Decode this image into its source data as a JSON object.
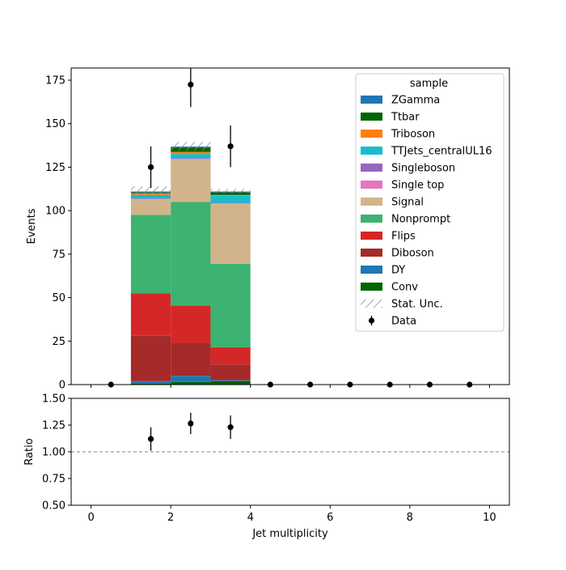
{
  "chart_data": [
    {
      "type": "bar",
      "stacked": true,
      "ylabel": "Events",
      "xlim": [
        -0.5,
        10.5
      ],
      "ylim": [
        0,
        182
      ],
      "yticks": [
        0,
        25,
        50,
        75,
        100,
        125,
        150,
        175
      ],
      "bins": [
        [
          1,
          2
        ],
        [
          2,
          3
        ],
        [
          3,
          4
        ]
      ],
      "series": [
        {
          "name": "Conv",
          "color": "#006400",
          "values": [
            0.5,
            1.5,
            2.0
          ]
        },
        {
          "name": "DY",
          "color": "#1f77b4",
          "values": [
            1.5,
            3.5,
            0.5
          ]
        },
        {
          "name": "Diboson",
          "color": "#a52a2a",
          "values": [
            26.0,
            19.0,
            9.0
          ]
        },
        {
          "name": "Flips",
          "color": "#d62728",
          "values": [
            24.5,
            21.5,
            10.0
          ]
        },
        {
          "name": "Nonprompt",
          "color": "#3cb371",
          "values": [
            45.0,
            59.5,
            48.0
          ]
        },
        {
          "name": "Signal",
          "color": "#d2b48c",
          "values": [
            9.0,
            24.5,
            34.5
          ]
        },
        {
          "name": "Single top",
          "color": "#e377c2",
          "values": [
            0.3,
            0.4,
            0.3
          ]
        },
        {
          "name": "Singleboson",
          "color": "#9467bd",
          "values": [
            0.2,
            0.2,
            0.2
          ]
        },
        {
          "name": "TTJets_centralUL16",
          "color": "#17becf",
          "values": [
            2.0,
            2.5,
            4.0
          ]
        },
        {
          "name": "Triboson",
          "color": "#ff7f0e",
          "values": [
            1.0,
            1.2,
            0.5
          ]
        },
        {
          "name": "Ttbar",
          "color": "#006400",
          "values": [
            0.5,
            2.5,
            1.5
          ]
        },
        {
          "name": "ZGamma",
          "color": "#1f77b4",
          "values": [
            0.5,
            0.5,
            0.5
          ]
        }
      ],
      "stat_unc": [
        {
          "bin": [
            1,
            2
          ],
          "low": 108.5,
          "high": 114.0
        },
        {
          "bin": [
            2,
            3
          ],
          "low": 134.5,
          "high": 139.5
        },
        {
          "bin": [
            3,
            4
          ],
          "low": 110.0,
          "high": 112.5
        }
      ],
      "data_points": [
        {
          "x": 0.5,
          "y": 0,
          "err": 0
        },
        {
          "x": 1.5,
          "y": 125,
          "err": 12
        },
        {
          "x": 2.5,
          "y": 172.5,
          "err": 13
        },
        {
          "x": 3.5,
          "y": 137,
          "err": 12
        },
        {
          "x": 4.5,
          "y": 0,
          "err": 0
        },
        {
          "x": 5.5,
          "y": 0,
          "err": 0
        },
        {
          "x": 6.5,
          "y": 0,
          "err": 0
        },
        {
          "x": 7.5,
          "y": 0,
          "err": 0
        },
        {
          "x": 8.5,
          "y": 0,
          "err": 0
        },
        {
          "x": 9.5,
          "y": 0,
          "err": 0
        }
      ],
      "legend": {
        "title": "sample",
        "placement": "top-right",
        "entries": [
          {
            "label": "ZGamma",
            "kind": "patch",
            "color": "#1f77b4"
          },
          {
            "label": "Ttbar",
            "kind": "patch",
            "color": "#006400"
          },
          {
            "label": "Triboson",
            "kind": "patch",
            "color": "#ff7f0e"
          },
          {
            "label": "TTJets_centralUL16",
            "kind": "patch",
            "color": "#17becf"
          },
          {
            "label": "Singleboson",
            "kind": "patch",
            "color": "#9467bd"
          },
          {
            "label": "Single top",
            "kind": "patch",
            "color": "#e377c2"
          },
          {
            "label": "Signal",
            "kind": "patch",
            "color": "#d2b48c"
          },
          {
            "label": "Nonprompt",
            "kind": "patch",
            "color": "#3cb371"
          },
          {
            "label": "Flips",
            "kind": "patch",
            "color": "#d62728"
          },
          {
            "label": "Diboson",
            "kind": "patch",
            "color": "#a52a2a"
          },
          {
            "label": "DY",
            "kind": "patch",
            "color": "#1f77b4"
          },
          {
            "label": "Conv",
            "kind": "patch",
            "color": "#006400"
          },
          {
            "label": "Stat. Unc.",
            "kind": "hatch",
            "color": "#888888"
          },
          {
            "label": "Data",
            "kind": "marker",
            "color": "#000000"
          }
        ]
      }
    },
    {
      "type": "scatter",
      "xlabel": "Jet multiplicity",
      "ylabel": "Ratio",
      "xlim": [
        -0.5,
        10.5
      ],
      "ylim": [
        0.5,
        1.5
      ],
      "xticks": [
        0,
        2,
        4,
        6,
        8,
        10
      ],
      "yticks": [
        0.5,
        0.75,
        1.0,
        1.25,
        1.5
      ],
      "ytick_labels": [
        "0.50",
        "0.75",
        "1.00",
        "1.25",
        "1.50"
      ],
      "reference_line": 1.0,
      "points": [
        {
          "x": 1.5,
          "y": 1.12,
          "err": 0.11
        },
        {
          "x": 2.5,
          "y": 1.265,
          "err": 0.1
        },
        {
          "x": 3.5,
          "y": 1.23,
          "err": 0.11
        }
      ]
    }
  ]
}
